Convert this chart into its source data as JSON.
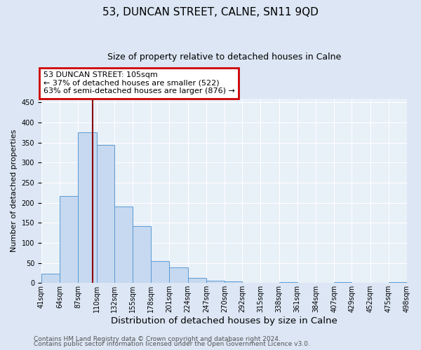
{
  "title": "53, DUNCAN STREET, CALNE, SN11 9QD",
  "subtitle": "Size of property relative to detached houses in Calne",
  "xlabel": "Distribution of detached houses by size in Calne",
  "ylabel": "Number of detached properties",
  "bar_edges": [
    41,
    64,
    87,
    110,
    132,
    155,
    178,
    201,
    224,
    247,
    270,
    292,
    315,
    338,
    361,
    384,
    407,
    429,
    452,
    475,
    498
  ],
  "bar_heights": [
    24,
    216,
    375,
    344,
    190,
    141,
    55,
    39,
    12,
    6,
    4,
    0,
    0,
    3,
    0,
    0,
    2,
    0,
    0,
    2
  ],
  "bar_color": "#c6d9f0",
  "bar_edgecolor": "#5b9bd5",
  "reference_line_x": 105,
  "reference_line_color": "#8b0000",
  "ylim": [
    0,
    460
  ],
  "annotation_text": "53 DUNCAN STREET: 105sqm\n← 37% of detached houses are smaller (522)\n63% of semi-detached houses are larger (876) →",
  "annotation_box_color": "#ffffff",
  "annotation_box_edgecolor": "#cc0000",
  "tick_labels": [
    "41sqm",
    "64sqm",
    "87sqm",
    "110sqm",
    "132sqm",
    "155sqm",
    "178sqm",
    "201sqm",
    "224sqm",
    "247sqm",
    "270sqm",
    "292sqm",
    "315sqm",
    "338sqm",
    "361sqm",
    "384sqm",
    "407sqm",
    "429sqm",
    "452sqm",
    "475sqm",
    "498sqm"
  ],
  "footer_line1": "Contains HM Land Registry data © Crown copyright and database right 2024.",
  "footer_line2": "Contains public sector information licensed under the Open Government Licence v3.0.",
  "background_color": "#dce6f4",
  "plot_bg_color": "#e8f0f8",
  "title_fontsize": 11,
  "subtitle_fontsize": 9,
  "xlabel_fontsize": 9.5,
  "ylabel_fontsize": 8,
  "tick_fontsize": 7,
  "footer_fontsize": 6.5,
  "annotation_fontsize": 8
}
